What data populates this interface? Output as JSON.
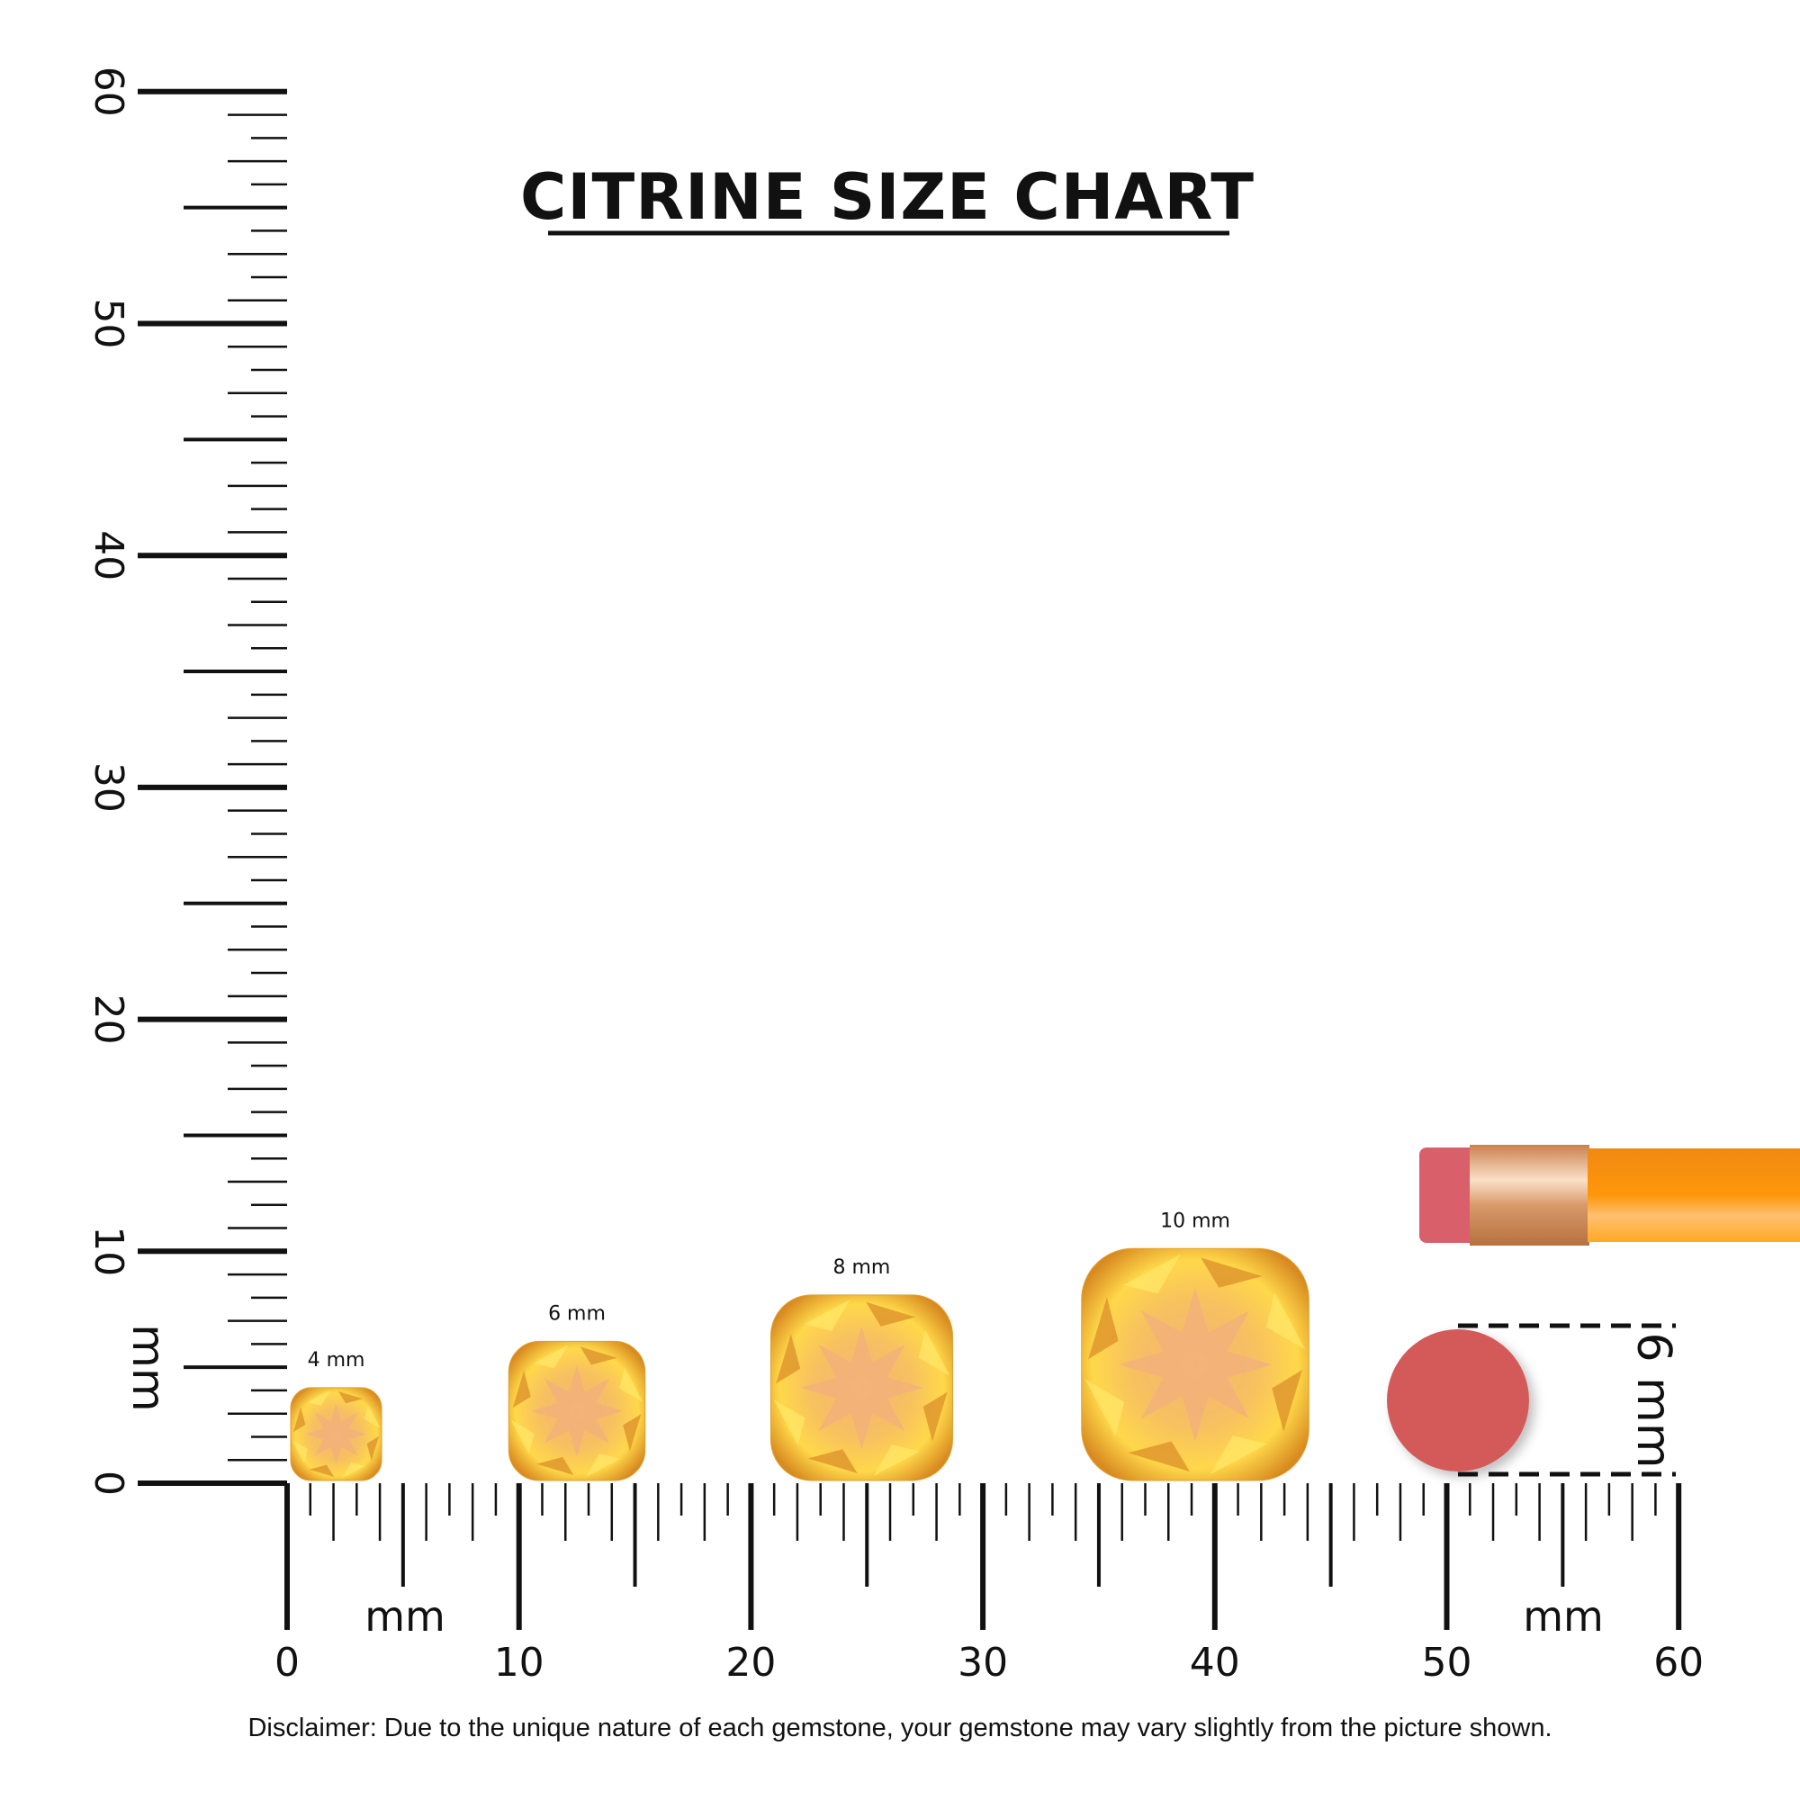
{
  "title": "CITRINE SIZE CHART",
  "disclaimer": "Disclaimer: Due to the unique nature of each gemstone, your gemstone may vary slightly from the picture shown.",
  "vertical_ruler": {
    "unit_label": "mm",
    "min": 0,
    "max": 60,
    "labels": [
      "0",
      "10",
      "20",
      "30",
      "40",
      "50",
      "60"
    ]
  },
  "horizontal_ruler": {
    "unit_label": "mm",
    "min": 0,
    "max": 60,
    "labels": [
      "0",
      "10",
      "20",
      "30",
      "40",
      "50",
      "60"
    ]
  },
  "gems": [
    {
      "label": "4 mm",
      "size_mm": 4,
      "start_mm": 0
    },
    {
      "label": "6 mm",
      "size_mm": 6,
      "start_mm": 9.4
    },
    {
      "label": "8 mm",
      "size_mm": 8,
      "start_mm": 20.7
    },
    {
      "label": "10 mm",
      "size_mm": 10,
      "start_mm": 34.1
    }
  ],
  "eraser_reference": {
    "label": "6 mm",
    "size_mm": 6
  },
  "colors": {
    "gem_light": "#ffe066",
    "gem_mid": "#f7b733",
    "gem_dark": "#c8781c",
    "gem_center": "#f3b774",
    "eraser": "#d45a5a",
    "pencil_body": "#ff9a10",
    "ferrule": "#e8a56c"
  }
}
